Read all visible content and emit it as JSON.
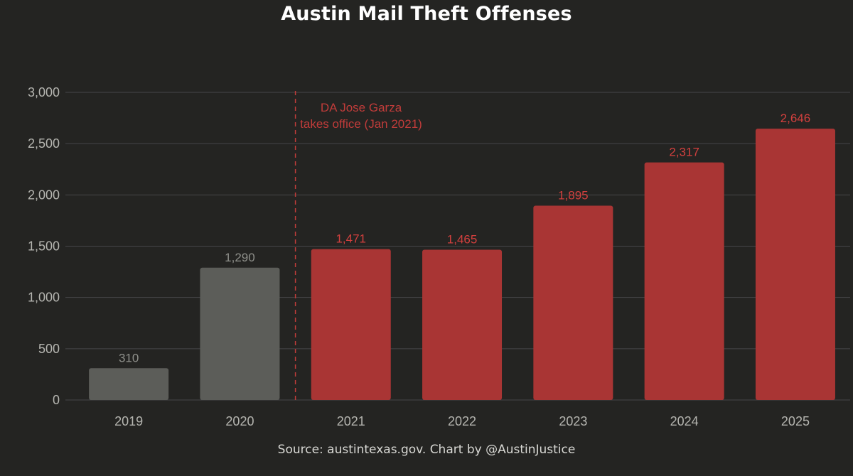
{
  "chart_data": {
    "type": "bar",
    "title": "Austin Mail Theft Offenses",
    "source": "Source: austintexas.gov. Chart by @AustinJustice",
    "categories": [
      "2019",
      "2020",
      "2021",
      "2022",
      "2023",
      "2024",
      "2025"
    ],
    "values": [
      310,
      1290,
      1471,
      1465,
      1895,
      2317,
      2646
    ],
    "value_labels": [
      "310",
      "1,290",
      "1,471",
      "1,465",
      "1,895",
      "2,317",
      "2,646"
    ],
    "bar_colors": [
      "#5c5d59",
      "#5c5d59",
      "#a93534",
      "#a93534",
      "#a93534",
      "#a93534",
      "#a93534"
    ],
    "value_label_colors": [
      "#8f908b",
      "#8f908b",
      "#d2403e",
      "#d2403e",
      "#d2403e",
      "#d2403e",
      "#d2403e"
    ],
    "ylim": [
      0,
      3000
    ],
    "yticks": [
      0,
      500,
      1000,
      1500,
      2000,
      2500,
      3000
    ],
    "ytick_labels": [
      "0",
      "500",
      "1,000",
      "1,500",
      "2,000",
      "2,500",
      "3,000"
    ],
    "xlabel": "",
    "ylabel": "",
    "grid": true,
    "annotation": {
      "lines": [
        "DA Jose Garza",
        "takes office (Jan 2021)"
      ],
      "color": "#c03c3a",
      "position": "between 2020 and 2021"
    },
    "colors": {
      "background": "#242422",
      "grid": "#46464a",
      "axis_text": "#b5b5b0"
    }
  }
}
